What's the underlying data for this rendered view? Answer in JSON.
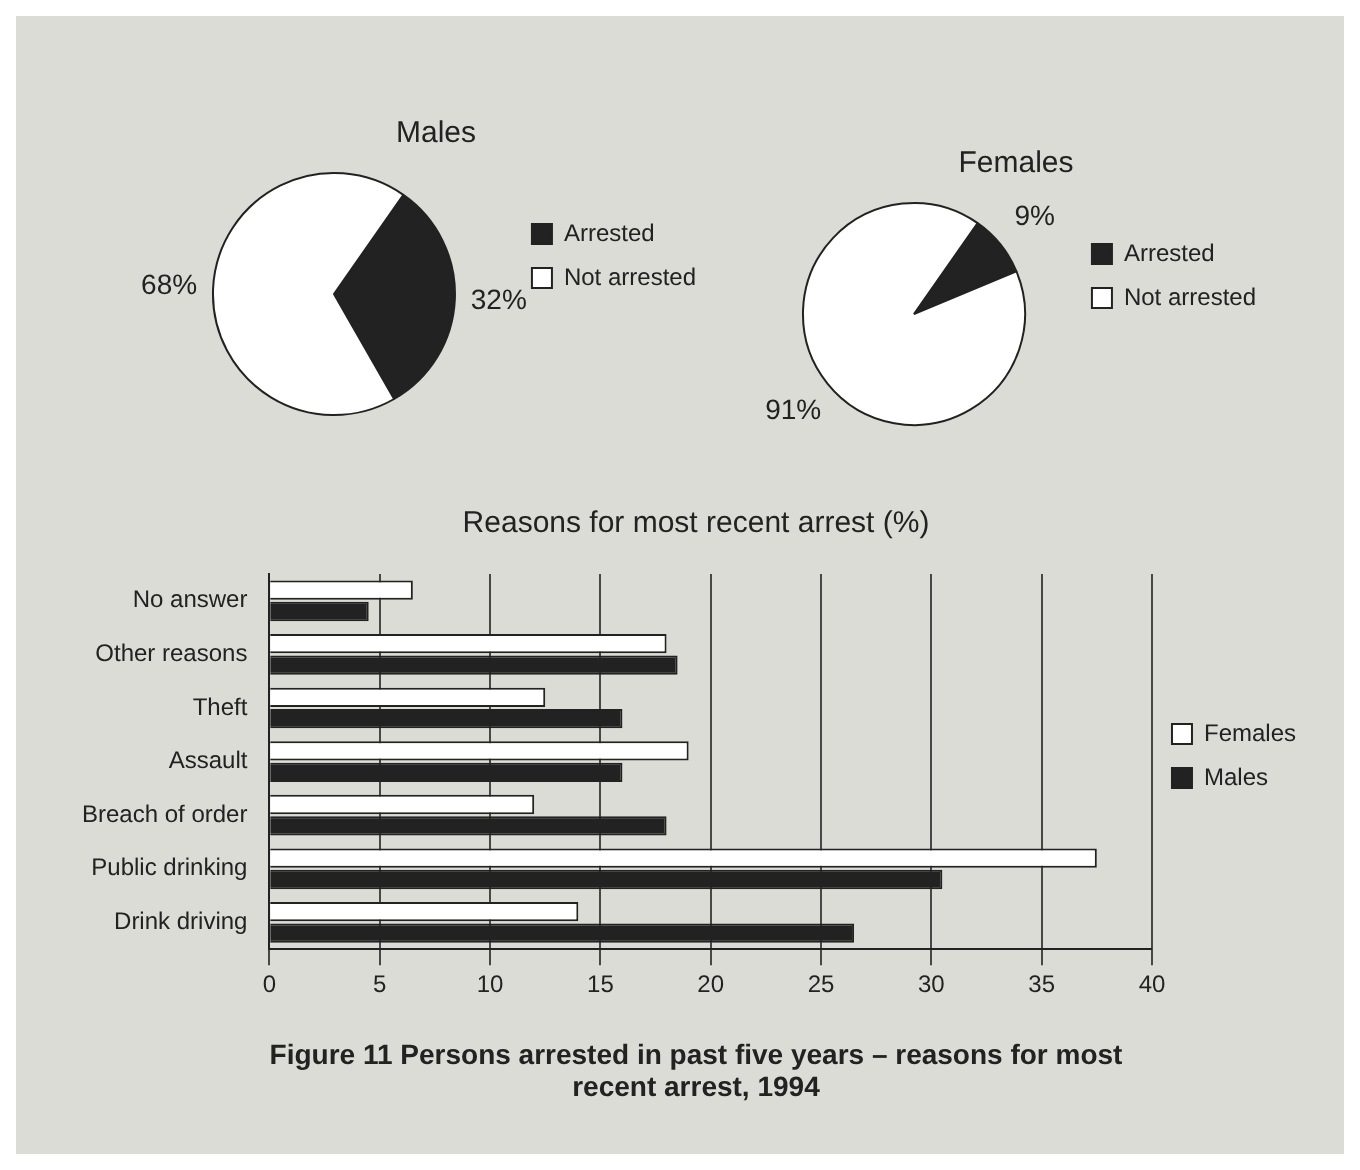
{
  "chart_data": [
    {
      "type": "pie",
      "title": "Males",
      "categories": [
        "Arrested",
        "Not arrested"
      ],
      "values": [
        32,
        68
      ],
      "colors": [
        "#222222",
        "#ffffff"
      ],
      "value_labels": [
        "32%",
        "68%"
      ],
      "legend": "right"
    },
    {
      "type": "pie",
      "title": "Females",
      "categories": [
        "Arrested",
        "Not arrested"
      ],
      "values": [
        9,
        91
      ],
      "colors": [
        "#222222",
        "#ffffff"
      ],
      "value_labels": [
        "9%",
        "91%"
      ],
      "legend": "right"
    },
    {
      "type": "bar",
      "orientation": "horizontal",
      "title": "Reasons for most recent arrest (%)",
      "categories": [
        "No answer",
        "Other reasons",
        "Theft",
        "Assault",
        "Breach of order",
        "Public drinking",
        "Drink driving"
      ],
      "series": [
        {
          "name": "Females",
          "color": "#ffffff",
          "values": [
            6.5,
            18,
            12.5,
            19,
            12,
            37.5,
            14
          ]
        },
        {
          "name": "Males",
          "color": "#222222",
          "values": [
            4.5,
            18.5,
            16,
            16,
            18,
            30.5,
            26.5
          ]
        }
      ],
      "xlim": [
        0,
        40
      ],
      "xticks": [
        0,
        5,
        10,
        15,
        20,
        25,
        30,
        35,
        40
      ],
      "grid": "x",
      "legend": "right",
      "annotations": [
        "Figure 11   Persons arrested in past five years – reasons for most recent arrest, 1994"
      ]
    }
  ]
}
